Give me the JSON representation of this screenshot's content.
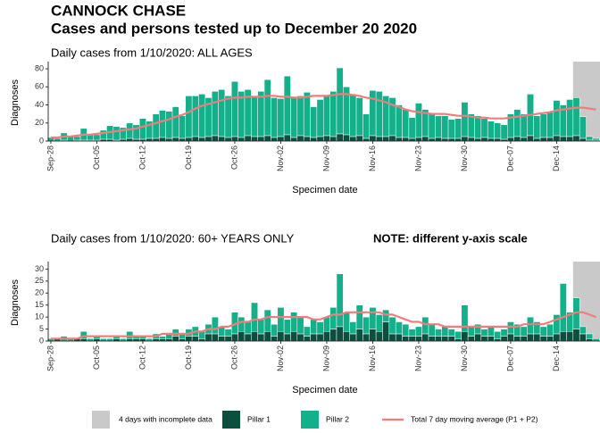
{
  "header": {
    "place": "CANNOCK CHASE",
    "title": "Cases and persons tested up to December 20 2020"
  },
  "chart_data": [
    {
      "type": "bar",
      "stacked": true,
      "subtitle": "Daily cases from 1/10/2020: ALL AGES",
      "xlabel": "Specimen date",
      "ylabel": "Diagnoses",
      "categories": [
        "Sep-28",
        null,
        null,
        null,
        null,
        null,
        null,
        "Oct-05",
        null,
        null,
        null,
        null,
        null,
        null,
        "Oct-12",
        null,
        null,
        null,
        null,
        null,
        null,
        "Oct-19",
        null,
        null,
        null,
        null,
        null,
        null,
        "Oct-26",
        null,
        null,
        null,
        null,
        null,
        null,
        "Nov-02",
        null,
        null,
        null,
        null,
        null,
        null,
        "Nov-09",
        null,
        null,
        null,
        null,
        null,
        null,
        "Nov-16",
        null,
        null,
        null,
        null,
        null,
        null,
        "Nov-23",
        null,
        null,
        null,
        null,
        null,
        null,
        "Nov-30",
        null,
        null,
        null,
        null,
        null,
        null,
        "Dec-07",
        null,
        null,
        null,
        null,
        null,
        null,
        "Dec-14",
        null,
        null,
        null,
        null,
        null,
        null
      ],
      "xlim": [
        -0.4,
        83.6
      ],
      "ylim": [
        0,
        85
      ],
      "yticks": [
        0,
        20,
        40,
        60,
        80
      ],
      "shade": {
        "name": "4 days with incomplete data",
        "color": "#c9c9c9",
        "xlim": [
          79.5,
          83.6
        ]
      },
      "series": [
        {
          "name": "Pillar 1",
          "color": "#0d4f3e",
          "values": [
            0,
            0,
            1,
            0,
            1,
            1,
            1,
            1,
            2,
            2,
            1,
            2,
            3,
            2,
            2,
            3,
            3,
            4,
            3,
            4,
            3,
            4,
            5,
            4,
            5,
            6,
            5,
            4,
            5,
            4,
            6,
            5,
            5,
            6,
            4,
            5,
            7,
            4,
            6,
            5,
            4,
            5,
            6,
            5,
            8,
            7,
            5,
            6,
            3,
            6,
            5,
            5,
            6,
            4,
            4,
            3,
            4,
            5,
            3,
            4,
            3,
            3,
            3,
            5,
            4,
            3,
            4,
            3,
            3,
            2,
            4,
            5,
            4,
            6,
            3,
            4,
            4,
            6,
            5,
            5,
            6,
            3,
            1,
            1
          ]
        },
        {
          "name": "Pillar 2",
          "color": "#14b08b",
          "values": [
            4,
            3,
            8,
            6,
            4,
            13,
            7,
            6,
            10,
            15,
            15,
            13,
            17,
            16,
            23,
            19,
            27,
            30,
            30,
            34,
            25,
            46,
            45,
            48,
            43,
            49,
            52,
            46,
            61,
            51,
            51,
            45,
            50,
            62,
            44,
            42,
            65,
            44,
            44,
            49,
            34,
            41,
            44,
            50,
            73,
            53,
            47,
            42,
            27,
            50,
            50,
            45,
            42,
            36,
            31,
            23,
            38,
            30,
            27,
            24,
            25,
            21,
            22,
            38,
            26,
            25,
            21,
            19,
            17,
            16,
            26,
            30,
            26,
            46,
            25,
            26,
            28,
            39,
            35,
            41,
            42,
            24,
            4,
            2
          ]
        },
        {
          "name": "Total 7 day moving average (P1 + P2)",
          "type": "line",
          "color": "#f27c7c",
          "values": [
            4,
            4,
            5,
            5,
            6,
            7,
            7,
            8,
            9,
            10,
            11,
            12,
            13,
            14,
            16,
            18,
            20,
            22,
            24,
            27,
            29,
            32,
            36,
            39,
            41,
            43,
            45,
            47,
            48,
            48,
            49,
            49,
            49,
            50,
            50,
            49,
            49,
            48,
            48,
            49,
            50,
            50,
            50,
            51,
            52,
            52,
            51,
            50,
            48,
            47,
            45,
            43,
            40,
            38,
            35,
            33,
            32,
            31,
            30,
            30,
            30,
            29,
            28,
            28,
            27,
            26,
            26,
            25,
            25,
            25,
            26,
            27,
            28,
            29,
            30,
            31,
            32,
            34,
            35,
            36,
            37,
            37,
            36,
            35
          ]
        }
      ]
    },
    {
      "type": "bar",
      "stacked": true,
      "subtitle": "Daily cases from 1/10/2020: 60+ YEARS ONLY",
      "note": "NOTE: different y-axis scale",
      "xlabel": "Specimen date",
      "ylabel": "Diagnoses",
      "categories": [
        "Sep-28",
        null,
        null,
        null,
        null,
        null,
        null,
        "Oct-05",
        null,
        null,
        null,
        null,
        null,
        null,
        "Oct-12",
        null,
        null,
        null,
        null,
        null,
        null,
        "Oct-19",
        null,
        null,
        null,
        null,
        null,
        null,
        "Oct-26",
        null,
        null,
        null,
        null,
        null,
        null,
        "Nov-02",
        null,
        null,
        null,
        null,
        null,
        null,
        "Nov-09",
        null,
        null,
        null,
        null,
        null,
        null,
        "Nov-16",
        null,
        null,
        null,
        null,
        null,
        null,
        "Nov-23",
        null,
        null,
        null,
        null,
        null,
        null,
        "Nov-30",
        null,
        null,
        null,
        null,
        null,
        null,
        "Dec-07",
        null,
        null,
        null,
        null,
        null,
        null,
        "Dec-14",
        null,
        null,
        null,
        null,
        null,
        null
      ],
      "xlim": [
        -0.4,
        83.6
      ],
      "ylim": [
        0,
        32
      ],
      "yticks": [
        0,
        5,
        10,
        15,
        20,
        25,
        30
      ],
      "shade": {
        "color": "#c9c9c9",
        "xlim": [
          79.5,
          83.6
        ]
      },
      "series": [
        {
          "color": "#0d4f3e",
          "values": [
            0,
            1,
            0,
            0,
            1,
            1,
            0,
            1,
            0,
            0,
            1,
            0,
            1,
            1,
            1,
            0,
            1,
            1,
            1,
            2,
            1,
            2,
            2,
            1,
            3,
            3,
            2,
            2,
            3,
            4,
            3,
            4,
            3,
            4,
            2,
            4,
            3,
            4,
            3,
            2,
            3,
            3,
            4,
            5,
            6,
            4,
            3,
            5,
            3,
            5,
            4,
            8,
            3,
            3,
            2,
            2,
            2,
            3,
            2,
            2,
            2,
            2,
            1,
            4,
            2,
            3,
            2,
            2,
            1,
            2,
            3,
            2,
            2,
            3,
            3,
            2,
            2,
            3,
            4,
            4,
            5,
            3,
            1,
            0
          ]
        },
        {
          "color": "#14b08b",
          "values": [
            1,
            0,
            2,
            1,
            0,
            3,
            1,
            1,
            1,
            1,
            1,
            1,
            3,
            1,
            1,
            1,
            2,
            1,
            2,
            3,
            2,
            3,
            4,
            3,
            4,
            7,
            4,
            3,
            9,
            6,
            5,
            12,
            6,
            9,
            5,
            10,
            6,
            8,
            7,
            4,
            6,
            5,
            6,
            9,
            22,
            8,
            5,
            10,
            7,
            9,
            7,
            5,
            7,
            5,
            5,
            3,
            4,
            7,
            5,
            3,
            4,
            3,
            3,
            11,
            4,
            4,
            3,
            4,
            3,
            3,
            5,
            5,
            4,
            7,
            5,
            4,
            5,
            8,
            20,
            8,
            13,
            3,
            2,
            1
          ]
        },
        {
          "type": "line",
          "color": "#f27c7c",
          "values": [
            1,
            1,
            1,
            1,
            1,
            2,
            2,
            2,
            2,
            2,
            2,
            2,
            2,
            2,
            2,
            2,
            2,
            3,
            3,
            3,
            3,
            3,
            4,
            4,
            5,
            5,
            6,
            6,
            7,
            8,
            8,
            9,
            9,
            10,
            10,
            10,
            10,
            10,
            10,
            10,
            9,
            9,
            10,
            11,
            11,
            12,
            12,
            12,
            12,
            12,
            12,
            11,
            11,
            10,
            9,
            8,
            8,
            7,
            7,
            7,
            6,
            6,
            6,
            6,
            6,
            6,
            6,
            6,
            6,
            6,
            6,
            6,
            7,
            7,
            7,
            7,
            8,
            9,
            10,
            11,
            12,
            12,
            11,
            10
          ]
        }
      ]
    }
  ]
}
